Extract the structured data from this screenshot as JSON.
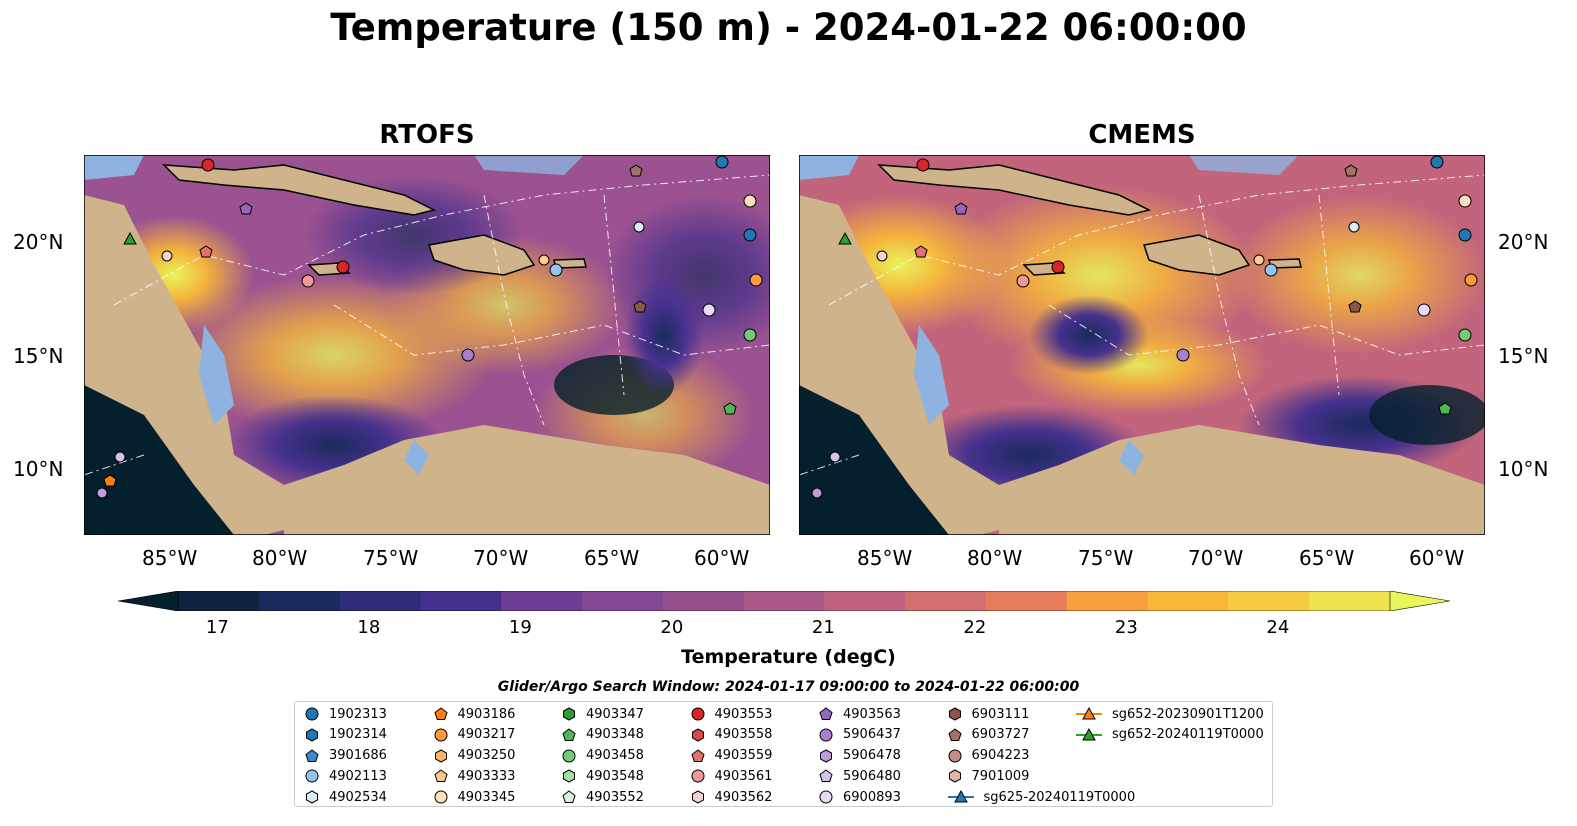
{
  "title": "Temperature (150 m) - 2024-01-22 06:00:00",
  "panels": [
    {
      "title": "RTOFS"
    },
    {
      "title": "CMEMS"
    }
  ],
  "axes": {
    "lon_ticks": [
      "85°W",
      "80°W",
      "75°W",
      "70°W",
      "65°W",
      "60°W"
    ],
    "lat_ticks": [
      "20°N",
      "15°N",
      "10°N"
    ]
  },
  "colorbar": {
    "label": "Temperature (degC)",
    "ticks": [
      "17",
      "18",
      "19",
      "20",
      "21",
      "22",
      "23",
      "24"
    ],
    "range": [
      16.75,
      24.75
    ],
    "extend": "both",
    "colors": [
      "#04202c",
      "#0d2340",
      "#1b2a5c",
      "#2f2c7a",
      "#45318d",
      "#5a3790",
      "#6d3e93",
      "#824894",
      "#96508f",
      "#ab5989",
      "#c0637f",
      "#d46f6f",
      "#e57c5c",
      "#f18e48",
      "#f7a23c",
      "#f8b73a",
      "#f5cc40",
      "#efe24f",
      "#e8f55b"
    ]
  },
  "search_window": "Glider/Argo Search Window: 2024-01-17 09:00:00 to 2024-01-22 06:00:00",
  "legend": [
    {
      "label": "1902313",
      "marker": "circle",
      "color": "#1f77b4"
    },
    {
      "label": "1902314",
      "marker": "hexagon",
      "color": "#1f77b4"
    },
    {
      "label": "3901686",
      "marker": "pentagon",
      "color": "#3a8ad0"
    },
    {
      "label": "4902113",
      "marker": "circle",
      "color": "#8ec6ef"
    },
    {
      "label": "4902534",
      "marker": "hexagon",
      "color": "#d8ecfa"
    },
    {
      "label": "4903186",
      "marker": "pentagon",
      "color": "#ff7f0e"
    },
    {
      "label": "4903217",
      "marker": "circle",
      "color": "#ff9a3c"
    },
    {
      "label": "4903250",
      "marker": "hexagon",
      "color": "#ffb266"
    },
    {
      "label": "4903333",
      "marker": "pentagon",
      "color": "#ffc990"
    },
    {
      "label": "4903345",
      "marker": "circle",
      "color": "#ffe0bd"
    },
    {
      "label": "4903347",
      "marker": "hexagon",
      "color": "#2ca02c"
    },
    {
      "label": "4903348",
      "marker": "pentagon",
      "color": "#4fb84f"
    },
    {
      "label": "4903458",
      "marker": "circle",
      "color": "#73cc73"
    },
    {
      "label": "4903548",
      "marker": "hexagon",
      "color": "#a4e0a4"
    },
    {
      "label": "4903552",
      "marker": "pentagon",
      "color": "#d6f3d6"
    },
    {
      "label": "4903553",
      "marker": "circle",
      "color": "#d62728"
    },
    {
      "label": "4903558",
      "marker": "hexagon",
      "color": "#de4a4a"
    },
    {
      "label": "4903559",
      "marker": "pentagon",
      "color": "#e66f6f"
    },
    {
      "label": "4903561",
      "marker": "circle",
      "color": "#f19999"
    },
    {
      "label": "4903562",
      "marker": "hexagon",
      "color": "#fad0d0"
    },
    {
      "label": "4903563",
      "marker": "pentagon",
      "color": "#9467bd"
    },
    {
      "label": "5906437",
      "marker": "circle",
      "color": "#a880cc"
    },
    {
      "label": "5906478",
      "marker": "hexagon",
      "color": "#bd9ddb"
    },
    {
      "label": "5906480",
      "marker": "pentagon",
      "color": "#d6c2ea"
    },
    {
      "label": "6900893",
      "marker": "circle",
      "color": "#ead8f5"
    },
    {
      "label": "6903111",
      "marker": "hexagon",
      "color": "#8c564b"
    },
    {
      "label": "6903727",
      "marker": "pentagon",
      "color": "#a3726a"
    },
    {
      "label": "6904223",
      "marker": "circle",
      "color": "#c49085"
    },
    {
      "label": "7901009",
      "marker": "hexagon",
      "color": "#e5b4a6"
    },
    {
      "label": "sg625-20240119T0000",
      "marker": "triangle-line",
      "color": "#1f77b4"
    },
    {
      "label": "sg652-20230901T1200",
      "marker": "triangle-line",
      "color": "#ff7f0e"
    },
    {
      "label": "sg652-20240119T0000",
      "marker": "triangle-line",
      "color": "#2ca02c"
    }
  ],
  "map_colors": {
    "land": "#cfb38b",
    "shelf": "#8fb3e0",
    "coast": "#000000",
    "deep": "#04202c"
  }
}
